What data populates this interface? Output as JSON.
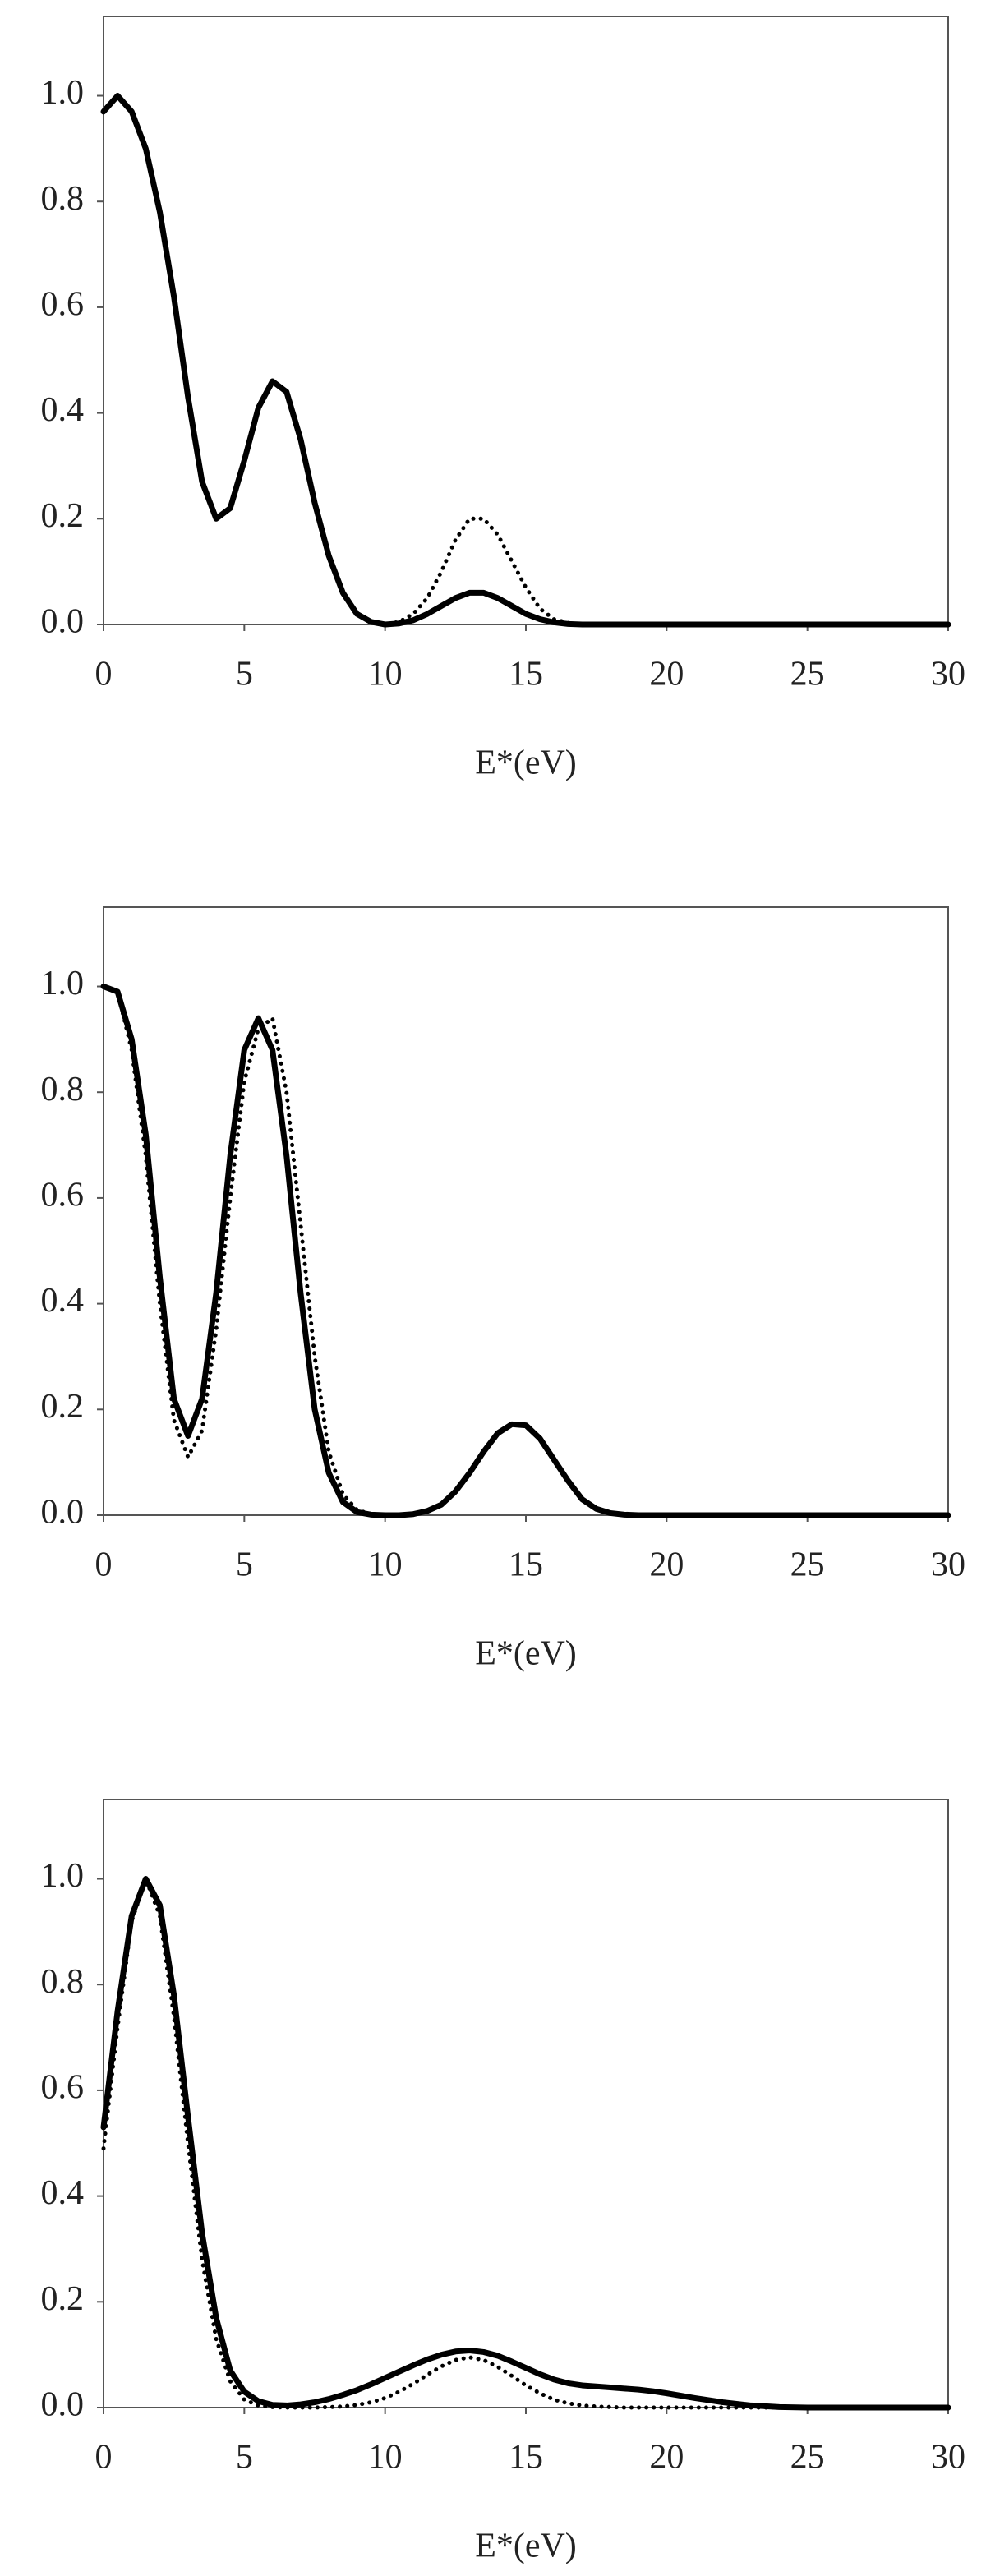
{
  "chart_data": [
    {
      "type": "line",
      "xlabel": "E*(eV)",
      "x": [
        0,
        0.5,
        1,
        1.5,
        2,
        2.5,
        3,
        3.5,
        4,
        4.5,
        5,
        5.5,
        6,
        6.5,
        7,
        7.5,
        8,
        8.5,
        9,
        9.5,
        10,
        10.5,
        11,
        11.5,
        12,
        12.5,
        13,
        13.5,
        14,
        14.5,
        15,
        15.5,
        16,
        16.5,
        17,
        17.5,
        18,
        18.5,
        19,
        19.5,
        20,
        21,
        22,
        23,
        24,
        25,
        26,
        27,
        28,
        29,
        30
      ],
      "xlim": [
        0,
        30
      ],
      "xticks": [
        0,
        5,
        10,
        15,
        20,
        25,
        30
      ],
      "ylim": [
        0,
        1.15
      ],
      "yticks": [
        {
          "value": 0,
          "label": "0.0"
        },
        {
          "value": 0.2,
          "label": "0.2"
        },
        {
          "value": 0.4,
          "label": "0.4"
        },
        {
          "value": 0.6,
          "label": "0.6"
        },
        {
          "value": 0.8,
          "label": "0.8"
        },
        {
          "value": 1,
          "label": "1.0"
        }
      ],
      "series": [
        {
          "color": "#000000",
          "line_style": "solid",
          "values": [
            0.97,
            1.0,
            0.97,
            0.9,
            0.78,
            0.62,
            0.43,
            0.27,
            0.2,
            0.22,
            0.31,
            0.41,
            0.46,
            0.44,
            0.35,
            0.23,
            0.13,
            0.06,
            0.02,
            0.005,
            0,
            0.002,
            0.008,
            0.02,
            0.035,
            0.05,
            0.06,
            0.06,
            0.05,
            0.035,
            0.02,
            0.01,
            0.004,
            0.001,
            0,
            0,
            0,
            0,
            0,
            0,
            0,
            0,
            0,
            0,
            0,
            0,
            0,
            0,
            0,
            0,
            0
          ]
        },
        {
          "color": "#000000",
          "line_style": "dotted",
          "values": [
            0.97,
            1.0,
            0.97,
            0.9,
            0.78,
            0.62,
            0.43,
            0.27,
            0.2,
            0.22,
            0.31,
            0.41,
            0.46,
            0.44,
            0.35,
            0.23,
            0.13,
            0.06,
            0.02,
            0.005,
            0,
            0.005,
            0.02,
            0.05,
            0.1,
            0.16,
            0.2,
            0.2,
            0.17,
            0.12,
            0.07,
            0.03,
            0.01,
            0.003,
            0,
            0,
            0,
            0,
            0,
            0,
            0,
            0,
            0,
            0,
            0,
            0,
            0,
            0,
            0,
            0,
            0
          ]
        }
      ]
    },
    {
      "type": "line",
      "xlabel": "E*(eV)",
      "x": [
        0,
        0.5,
        1,
        1.5,
        2,
        2.5,
        3,
        3.5,
        4,
        4.5,
        5,
        5.5,
        6,
        6.5,
        7,
        7.5,
        8,
        8.5,
        9,
        9.5,
        10,
        10.5,
        11,
        11.5,
        12,
        12.5,
        13,
        13.5,
        14,
        14.5,
        15,
        15.5,
        16,
        16.5,
        17,
        17.5,
        18,
        18.5,
        19,
        19.5,
        20,
        21,
        22,
        23,
        24,
        25,
        26,
        27,
        28,
        29,
        30
      ],
      "xlim": [
        0,
        30
      ],
      "xticks": [
        0,
        5,
        10,
        15,
        20,
        25,
        30
      ],
      "ylim": [
        0,
        1.15
      ],
      "yticks": [
        {
          "value": 0,
          "label": "0.0"
        },
        {
          "value": 0.2,
          "label": "0.2"
        },
        {
          "value": 0.4,
          "label": "0.4"
        },
        {
          "value": 0.6,
          "label": "0.6"
        },
        {
          "value": 0.8,
          "label": "0.8"
        },
        {
          "value": 1,
          "label": "1.0"
        }
      ],
      "series": [
        {
          "color": "#000000",
          "line_style": "solid",
          "values": [
            1.0,
            0.99,
            0.9,
            0.72,
            0.45,
            0.22,
            0.15,
            0.22,
            0.42,
            0.68,
            0.88,
            0.94,
            0.88,
            0.68,
            0.42,
            0.2,
            0.08,
            0.025,
            0.006,
            0.001,
            0,
            0,
            0.002,
            0.008,
            0.02,
            0.045,
            0.08,
            0.12,
            0.155,
            0.172,
            0.17,
            0.145,
            0.105,
            0.065,
            0.03,
            0.012,
            0.004,
            0.001,
            0,
            0,
            0,
            0,
            0,
            0,
            0,
            0,
            0,
            0,
            0,
            0,
            0
          ]
        },
        {
          "color": "#000000",
          "line_style": "dotted",
          "values": [
            1.0,
            0.99,
            0.88,
            0.68,
            0.4,
            0.18,
            0.11,
            0.16,
            0.35,
            0.6,
            0.82,
            0.92,
            0.94,
            0.8,
            0.55,
            0.3,
            0.12,
            0.04,
            0.01,
            0.002,
            0,
            0,
            0.002,
            0.008,
            0.02,
            0.045,
            0.08,
            0.12,
            0.155,
            0.172,
            0.17,
            0.145,
            0.105,
            0.065,
            0.03,
            0.012,
            0.004,
            0.001,
            0,
            0,
            0,
            0,
            0,
            0,
            0,
            0,
            0,
            0,
            0,
            0,
            0
          ]
        }
      ]
    },
    {
      "type": "line",
      "xlabel": "E*(eV)",
      "x": [
        0,
        0.5,
        1,
        1.5,
        2,
        2.5,
        3,
        3.5,
        4,
        4.5,
        5,
        5.5,
        6,
        6.5,
        7,
        7.5,
        8,
        8.5,
        9,
        9.5,
        10,
        10.5,
        11,
        11.5,
        12,
        12.5,
        13,
        13.5,
        14,
        14.5,
        15,
        15.5,
        16,
        16.5,
        17,
        17.5,
        18,
        18.5,
        19,
        19.5,
        20,
        21,
        22,
        23,
        24,
        25,
        26,
        27,
        28,
        29,
        30
      ],
      "xlim": [
        0,
        30
      ],
      "xticks": [
        0,
        5,
        10,
        15,
        20,
        25,
        30
      ],
      "ylim": [
        0,
        1.15
      ],
      "yticks": [
        {
          "value": 0,
          "label": "0.0"
        },
        {
          "value": 0.2,
          "label": "0.2"
        },
        {
          "value": 0.4,
          "label": "0.4"
        },
        {
          "value": 0.6,
          "label": "0.6"
        },
        {
          "value": 0.8,
          "label": "0.8"
        },
        {
          "value": 1,
          "label": "1.0"
        }
      ],
      "series": [
        {
          "color": "#000000",
          "line_style": "solid",
          "values": [
            0.53,
            0.75,
            0.93,
            1.0,
            0.95,
            0.78,
            0.55,
            0.33,
            0.17,
            0.07,
            0.03,
            0.012,
            0.005,
            0.004,
            0.006,
            0.01,
            0.016,
            0.024,
            0.033,
            0.044,
            0.056,
            0.068,
            0.08,
            0.091,
            0.1,
            0.106,
            0.108,
            0.105,
            0.098,
            0.087,
            0.075,
            0.063,
            0.053,
            0.046,
            0.042,
            0.04,
            0.038,
            0.036,
            0.034,
            0.031,
            0.027,
            0.018,
            0.01,
            0.004,
            0.001,
            0,
            0,
            0,
            0,
            0,
            0
          ]
        },
        {
          "color": "#000000",
          "line_style": "dotted",
          "values": [
            0.49,
            0.72,
            0.92,
            1.0,
            0.93,
            0.74,
            0.5,
            0.28,
            0.13,
            0.05,
            0.015,
            0.004,
            0.001,
            0,
            0,
            0,
            0.001,
            0.002,
            0.005,
            0.01,
            0.018,
            0.03,
            0.045,
            0.062,
            0.078,
            0.09,
            0.095,
            0.09,
            0.077,
            0.06,
            0.042,
            0.027,
            0.015,
            0.008,
            0.004,
            0.002,
            0.001,
            0,
            0,
            0,
            0,
            0,
            0,
            0,
            0,
            0,
            0,
            0,
            0,
            0,
            0
          ]
        }
      ]
    }
  ]
}
